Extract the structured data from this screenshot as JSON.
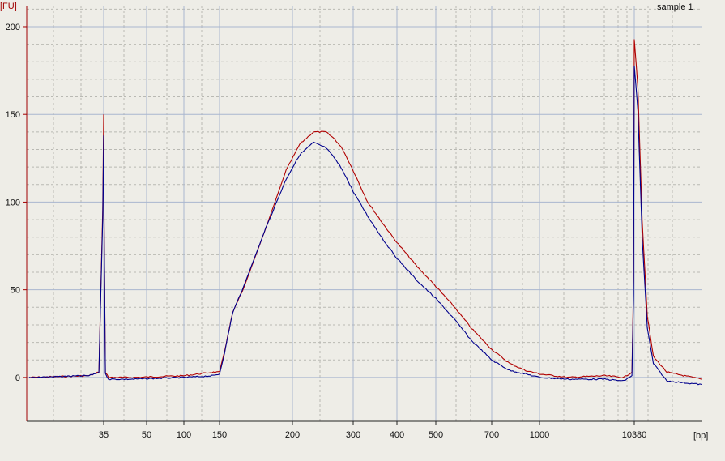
{
  "chart_data": {
    "type": "line",
    "title": "sample 1",
    "ylabel": "[FU]",
    "xlabel": "[bp]",
    "ylim": [
      -25,
      212
    ],
    "y_ticks": [
      0,
      50,
      100,
      150,
      200
    ],
    "x_ticks": [
      "35",
      "50",
      "100",
      "150",
      "200",
      "300",
      "400",
      "500",
      "700",
      "1000",
      "10380"
    ],
    "x_scale": "log",
    "grid": true,
    "colors": {
      "series_red": "#b00000",
      "series_blue": "#00008c",
      "axis": "#a00000",
      "grid_major": "#a9b6cf"
    },
    "series": [
      {
        "color": "#b00000",
        "points": [
          [
            28,
            0
          ],
          [
            33.5,
            1
          ],
          [
            34.5,
            3
          ],
          [
            34.9,
            95
          ],
          [
            35,
            150
          ],
          [
            35.1,
            96
          ],
          [
            35.5,
            3
          ],
          [
            36.5,
            0
          ],
          [
            45,
            0
          ],
          [
            100,
            1
          ],
          [
            140,
            3
          ],
          [
            150,
            3
          ],
          [
            153,
            15
          ],
          [
            158,
            37
          ],
          [
            165,
            51
          ],
          [
            180,
            85
          ],
          [
            195,
            118
          ],
          [
            210,
            133
          ],
          [
            230,
            140
          ],
          [
            250,
            140
          ],
          [
            265,
            136
          ],
          [
            280,
            130
          ],
          [
            300,
            118
          ],
          [
            330,
            100
          ],
          [
            370,
            86
          ],
          [
            400,
            77
          ],
          [
            450,
            63
          ],
          [
            500,
            52
          ],
          [
            560,
            40
          ],
          [
            620,
            28
          ],
          [
            700,
            16
          ],
          [
            800,
            8
          ],
          [
            900,
            4
          ],
          [
            1000,
            2
          ],
          [
            2000,
            0
          ],
          [
            5000,
            1
          ],
          [
            8000,
            0
          ],
          [
            9800,
            3
          ],
          [
            10200,
            55
          ],
          [
            10380,
            193
          ],
          [
            10550,
            165
          ],
          [
            10750,
            90
          ],
          [
            11000,
            35
          ],
          [
            11300,
            12
          ],
          [
            12000,
            3
          ],
          [
            14000,
            -1
          ]
        ]
      },
      {
        "color": "#00008c",
        "points": [
          [
            28,
            0
          ],
          [
            33.5,
            1
          ],
          [
            34.5,
            3
          ],
          [
            34.9,
            90
          ],
          [
            35,
            138
          ],
          [
            35.1,
            92
          ],
          [
            35.5,
            2
          ],
          [
            36.5,
            -1
          ],
          [
            45,
            -1
          ],
          [
            100,
            0
          ],
          [
            140,
            1
          ],
          [
            150,
            2
          ],
          [
            153,
            14
          ],
          [
            158,
            37
          ],
          [
            165,
            52
          ],
          [
            180,
            85
          ],
          [
            195,
            113
          ],
          [
            210,
            127
          ],
          [
            230,
            134
          ],
          [
            250,
            131
          ],
          [
            265,
            125
          ],
          [
            280,
            118
          ],
          [
            300,
            106
          ],
          [
            330,
            92
          ],
          [
            370,
            77
          ],
          [
            400,
            68
          ],
          [
            450,
            55
          ],
          [
            500,
            45
          ],
          [
            560,
            33
          ],
          [
            620,
            21
          ],
          [
            700,
            10
          ],
          [
            800,
            4
          ],
          [
            900,
            2
          ],
          [
            1000,
            0
          ],
          [
            2000,
            -1
          ],
          [
            5000,
            -1
          ],
          [
            8000,
            -2
          ],
          [
            9800,
            1
          ],
          [
            10200,
            48
          ],
          [
            10380,
            178
          ],
          [
            10550,
            152
          ],
          [
            10750,
            80
          ],
          [
            11000,
            28
          ],
          [
            11300,
            8
          ],
          [
            12000,
            -2
          ],
          [
            14000,
            -4
          ]
        ]
      }
    ]
  }
}
